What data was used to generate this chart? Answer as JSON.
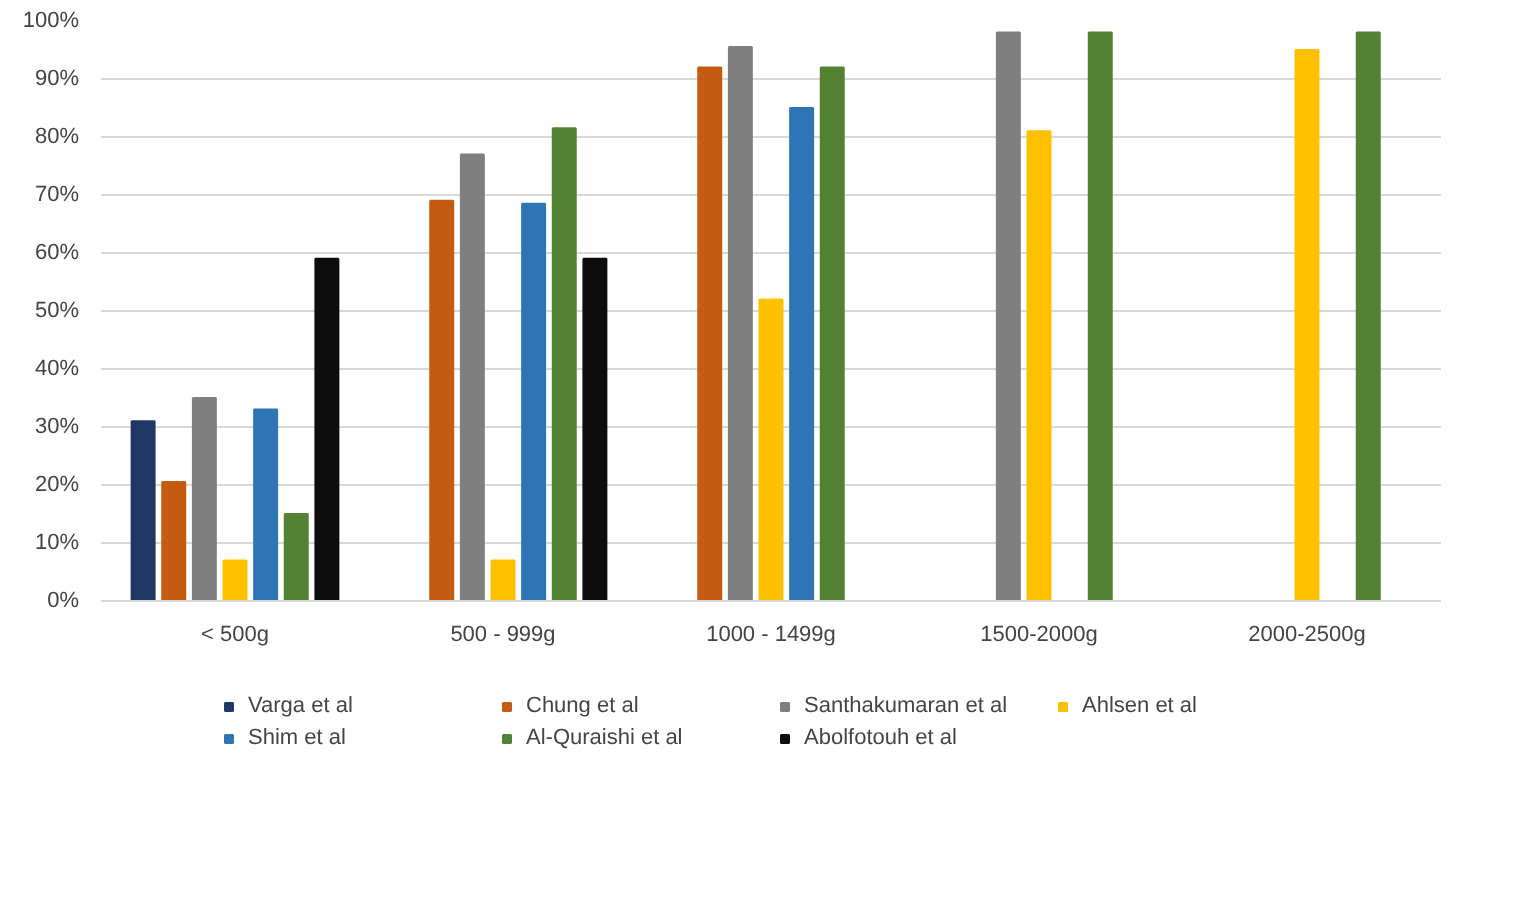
{
  "chart_data": {
    "type": "bar",
    "categories": [
      "< 500g",
      "500 - 999g",
      "1000 - 1499g",
      "1500-2000g",
      "2000-2500g"
    ],
    "series": [
      {
        "name": "Varga et al",
        "color": "#1f3864",
        "values": [
          31,
          null,
          null,
          null,
          null
        ]
      },
      {
        "name": "Chung et al",
        "color": "#c55a11",
        "values": [
          20.5,
          69,
          92,
          null,
          null
        ]
      },
      {
        "name": "Santhakumaran et al",
        "color": "#7f7f7f",
        "values": [
          35,
          77,
          95.5,
          98,
          null
        ]
      },
      {
        "name": "Ahlsen et al",
        "color": "#ffc000",
        "values": [
          7,
          7,
          52,
          81,
          95
        ]
      },
      {
        "name": "Shim et al",
        "color": "#2e75b6",
        "values": [
          33,
          68.5,
          85,
          null,
          null
        ]
      },
      {
        "name": "Al-Quraishi et al",
        "color": "#548235",
        "values": [
          15,
          81.5,
          92,
          98,
          98
        ]
      },
      {
        "name": "Abolfotouh et al",
        "color": "#0d0d0d",
        "values": [
          59,
          59,
          null,
          null,
          null
        ]
      }
    ],
    "ylim": [
      0,
      100
    ],
    "yticks": [
      {
        "value": 0,
        "label": "0%"
      },
      {
        "value": 10,
        "label": "10%"
      },
      {
        "value": 20,
        "label": "20%"
      },
      {
        "value": 30,
        "label": "30%"
      },
      {
        "value": 40,
        "label": "40%"
      },
      {
        "value": 50,
        "label": "50%"
      },
      {
        "value": 60,
        "label": "60%"
      },
      {
        "value": 70,
        "label": "70%"
      },
      {
        "value": 80,
        "label": "80%"
      },
      {
        "value": 90,
        "label": "90%"
      },
      {
        "value": 100,
        "label": "100%"
      }
    ],
    "grid": "y",
    "legend": "bottom"
  }
}
